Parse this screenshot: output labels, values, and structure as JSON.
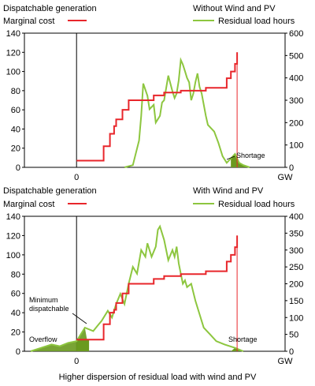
{
  "chart_data": [
    {
      "type": "line",
      "legend_left": {
        "title": "Dispatchable generation",
        "series_label": "Marginal cost",
        "color": "#e8262b"
      },
      "legend_right": {
        "title": "Without Wind and PV",
        "series_label": "Residual load hours",
        "color": "#8dc63f"
      },
      "xlabel": "GW",
      "x_zero_label": "0",
      "y_left": {
        "ticks": [
          "0",
          "20",
          "40",
          "60",
          "80",
          "100",
          "120",
          "140"
        ],
        "ylim": [
          0,
          140
        ]
      },
      "y_right": {
        "ticks": [
          "0",
          "100",
          "200",
          "300",
          "400",
          "500",
          "600"
        ],
        "ylim": [
          0,
          600
        ]
      },
      "annotations": {
        "shortage": "Shortage"
      },
      "series": [
        {
          "name": "Marginal cost",
          "axis": "left",
          "color": "#e8262b",
          "x": [
            0,
            13,
            13,
            16,
            16,
            18,
            18,
            19,
            19,
            22,
            22,
            25,
            25,
            37,
            37,
            42,
            42,
            50,
            50,
            62,
            62,
            72,
            72,
            74,
            74,
            76,
            76,
            77,
            77
          ],
          "y": [
            7,
            7,
            22,
            22,
            35,
            35,
            43,
            43,
            50,
            50,
            60,
            60,
            70,
            70,
            75,
            75,
            78,
            78,
            80,
            80,
            83,
            83,
            93,
            93,
            100,
            100,
            108,
            108,
            120
          ]
        },
        {
          "name": "Residual load hours",
          "axis": "right",
          "color": "#8dc63f",
          "x": [
            23,
            27,
            30,
            31,
            32,
            34,
            35,
            37,
            38,
            40,
            41,
            42,
            44,
            46,
            47,
            48,
            49,
            50,
            51,
            52,
            53,
            54,
            55,
            56,
            57,
            58,
            59,
            60,
            62,
            63,
            65,
            66,
            68,
            70,
            72,
            74,
            76,
            78,
            80,
            83
          ],
          "y": [
            0,
            10,
            120,
            230,
            375,
            320,
            260,
            280,
            200,
            230,
            290,
            300,
            410,
            340,
            310,
            330,
            390,
            480,
            460,
            430,
            400,
            380,
            300,
            330,
            380,
            420,
            360,
            330,
            230,
            190,
            170,
            160,
            110,
            50,
            20,
            40,
            60,
            20,
            10,
            0
          ]
        }
      ]
    },
    {
      "type": "line",
      "legend_left": {
        "title": "Dispatchable generation",
        "series_label": "Marginal cost",
        "color": "#e8262b"
      },
      "legend_right": {
        "title": "With Wind and PV",
        "series_label": "Residual load hours",
        "color": "#8dc63f"
      },
      "xlabel": "GW",
      "x_zero_label": "0",
      "caption": "Higher dispersion of residual load with wind and PV",
      "y_left": {
        "ticks": [
          "0",
          "20",
          "40",
          "60",
          "80",
          "100",
          "120",
          "140"
        ],
        "ylim": [
          0,
          140
        ]
      },
      "y_right": {
        "ticks": [
          "0",
          "50",
          "100",
          "150",
          "200",
          "250",
          "300",
          "350",
          "400"
        ],
        "ylim": [
          0,
          400
        ]
      },
      "annotations": {
        "overflow": "Overflow",
        "minimum_dispatchable": "Minimum dispatchable",
        "shortage": "Shortage"
      },
      "series": [
        {
          "name": "Marginal cost",
          "axis": "left",
          "color": "#e8262b",
          "x": [
            0,
            13,
            13,
            16,
            16,
            18,
            18,
            19,
            19,
            22,
            22,
            25,
            25,
            37,
            37,
            42,
            42,
            50,
            50,
            62,
            62,
            72,
            72,
            74,
            74,
            76,
            76,
            77,
            77
          ],
          "y": [
            12,
            12,
            28,
            28,
            40,
            40,
            43,
            43,
            50,
            50,
            60,
            60,
            70,
            70,
            75,
            75,
            78,
            78,
            80,
            80,
            83,
            83,
            93,
            93,
            100,
            100,
            108,
            108,
            120
          ]
        },
        {
          "name": "Residual load hours",
          "axis": "right",
          "color": "#8dc63f",
          "x": [
            -22,
            -17,
            -12,
            -8,
            -4,
            0,
            4,
            8,
            10,
            12,
            15,
            17,
            19,
            21,
            23,
            25,
            27,
            29,
            31,
            33,
            34,
            36,
            38,
            39,
            40,
            42,
            44,
            46,
            47,
            48,
            49,
            50,
            51,
            52,
            53,
            55,
            57,
            59,
            61,
            64,
            67,
            71,
            76,
            80
          ],
          "y": [
            0,
            10,
            20,
            15,
            25,
            30,
            70,
            60,
            75,
            90,
            120,
            100,
            140,
            170,
            140,
            200,
            250,
            230,
            300,
            280,
            320,
            280,
            310,
            360,
            370,
            330,
            270,
            300,
            280,
            310,
            260,
            230,
            200,
            210,
            190,
            200,
            150,
            110,
            70,
            50,
            30,
            20,
            10,
            0
          ]
        }
      ]
    }
  ]
}
